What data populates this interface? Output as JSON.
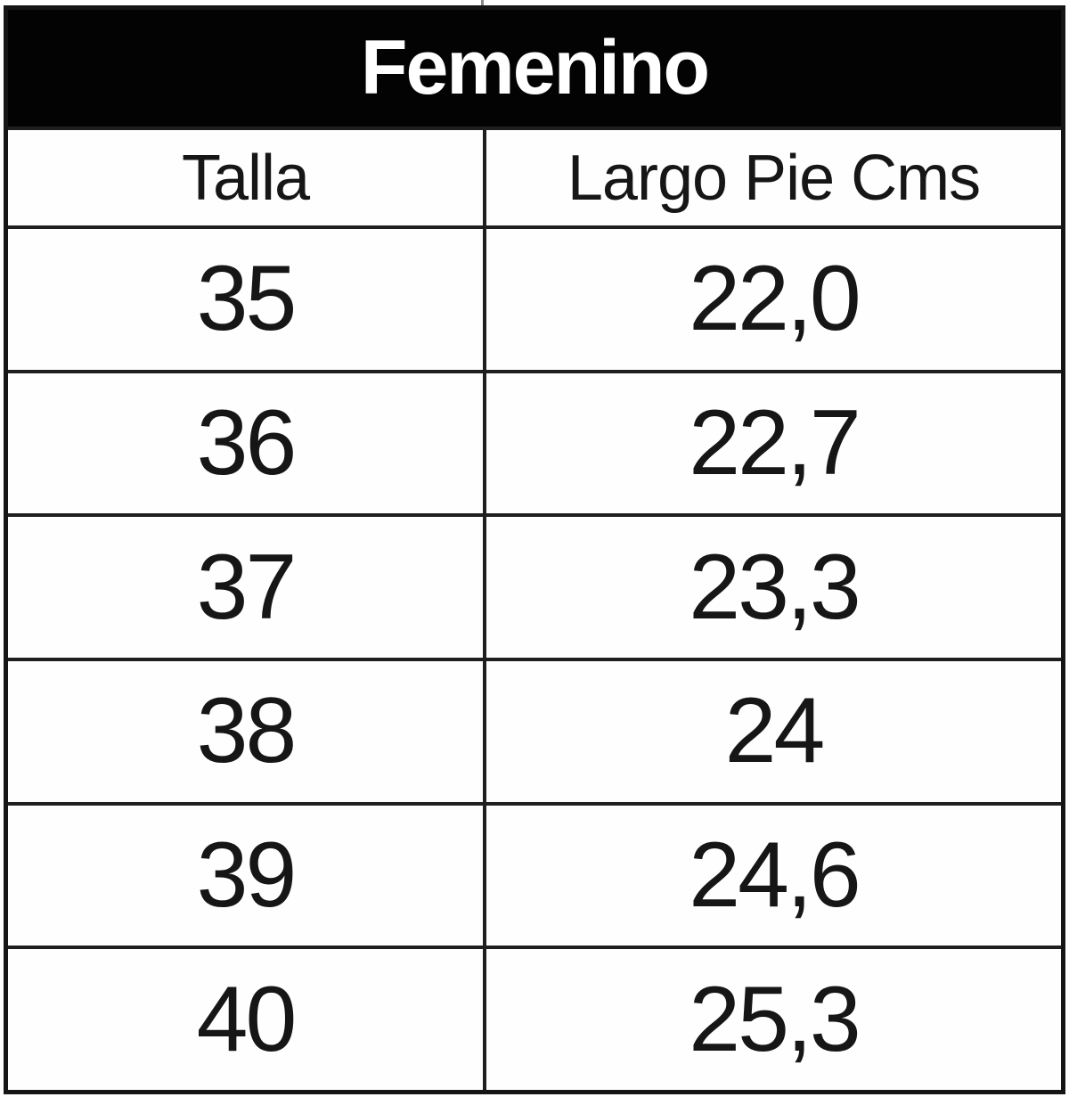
{
  "title": "Femenino",
  "columns": {
    "size": "Talla",
    "length": "Largo Pie Cms"
  },
  "rows": [
    {
      "size": "35",
      "length": "22,0"
    },
    {
      "size": "36",
      "length": "22,7"
    },
    {
      "size": "37",
      "length": "23,3"
    },
    {
      "size": "38",
      "length": "24"
    },
    {
      "size": "39",
      "length": "24,6"
    },
    {
      "size": "40",
      "length": "25,3"
    }
  ],
  "colors": {
    "header_bg": "#030303",
    "header_text": "#ffffff",
    "border": "#1f1f1f",
    "cell_text": "#161616",
    "background": "#ffffff"
  },
  "chart_data": {
    "type": "table",
    "title": "Femenino",
    "columns": [
      "Talla",
      "Largo Pie Cms"
    ],
    "rows": [
      [
        "35",
        "22,0"
      ],
      [
        "36",
        "22,7"
      ],
      [
        "37",
        "23,3"
      ],
      [
        "38",
        "24"
      ],
      [
        "39",
        "24,6"
      ],
      [
        "40",
        "25,3"
      ]
    ]
  }
}
